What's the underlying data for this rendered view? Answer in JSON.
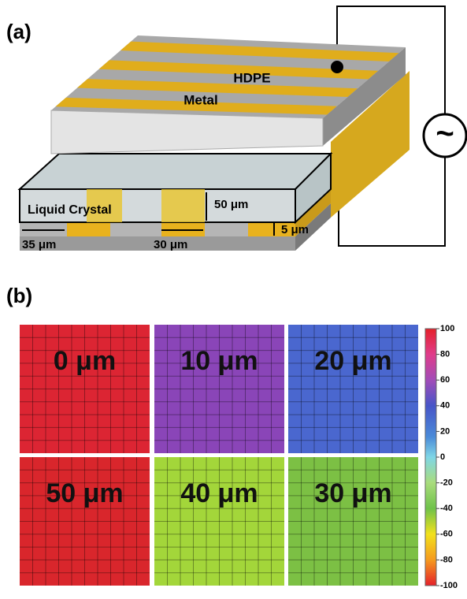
{
  "panel_a": {
    "label": "(a)",
    "hdpe": "HDPE",
    "metal": "Metal",
    "liquid_crystal": "Liquid Crystal",
    "thickness_lc": "50 μm",
    "thickness_metal": "5 μm",
    "gap": "35 μm",
    "width": "30 μm",
    "source": "~"
  },
  "panel_b": {
    "label": "(b)",
    "maps": [
      {
        "label": "0 μm",
        "color": "#dc2533"
      },
      {
        "label": "10 μm",
        "color": "#8a45b8"
      },
      {
        "label": "20 μm",
        "color": "#4a67cf"
      },
      {
        "label": "50 μm",
        "color": "#d9262c"
      },
      {
        "label": "40 μm",
        "color": "#a3d63a"
      },
      {
        "label": "30 μm",
        "color": "#7cc044"
      }
    ],
    "colorbar": {
      "range": [
        -100,
        100
      ],
      "ticks": [
        100,
        80,
        60,
        40,
        20,
        0,
        -20,
        -40,
        -60,
        -80,
        -100
      ]
    }
  }
}
